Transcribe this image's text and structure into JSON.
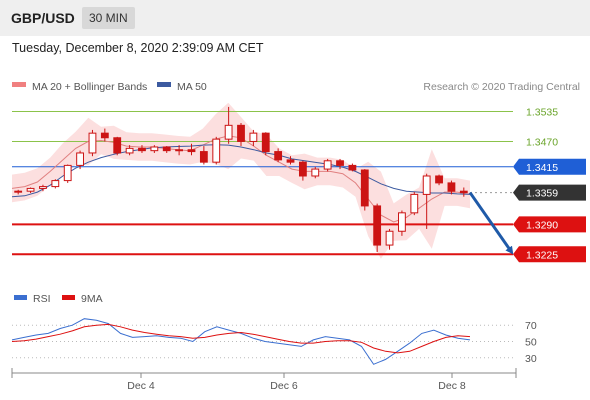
{
  "header": {
    "symbol": "GBP/USD",
    "timeframe": "30 MIN",
    "datetime": "Tuesday, December 8, 2020 2:39:09 AM CET"
  },
  "legend": {
    "ma20": "MA 20 + Bollinger Bands",
    "ma50": "MA 50",
    "credit": "Research © 2020 Trading Central"
  },
  "colors": {
    "candle": "#cc1414",
    "bollinger_fill": "#fbd9d9",
    "ma20": "#e08080",
    "ma50": "#3c5aa0",
    "resistance_green": "#8bc34a",
    "pivot_blue": "#1f5fd6",
    "support_red": "#dd1111",
    "current_price": "#333333",
    "arrow": "#1f5aa8",
    "rsi": "#3b6fd0",
    "rsi_ma": "#dd1111"
  },
  "chart_data": [
    {
      "type": "candlestick",
      "title": "GBP/USD",
      "timeframe": "30 MIN",
      "ylim": [
        1.318,
        1.356
      ],
      "x_labels": [
        "Dec 4",
        "Dec 6",
        "Dec 8"
      ],
      "levels": [
        {
          "label": "1.3535",
          "value": 1.3535,
          "kind": "resistance"
        },
        {
          "label": "1.3470",
          "value": 1.347,
          "kind": "resistance"
        },
        {
          "label": "1.3415",
          "value": 1.3415,
          "kind": "pivot"
        },
        {
          "label": "1.3359",
          "value": 1.3359,
          "kind": "current"
        },
        {
          "label": "1.3290",
          "value": 1.329,
          "kind": "support"
        },
        {
          "label": "1.3225",
          "value": 1.3225,
          "kind": "support"
        }
      ],
      "projection": {
        "from": 1.3359,
        "to": 1.3225
      },
      "series": [
        {
          "name": "MA 20 + Bollinger Bands",
          "values": [
            1.3368,
            1.3372,
            1.3382,
            1.3405,
            1.343,
            1.3455,
            1.347,
            1.3472,
            1.3468,
            1.346,
            1.3458,
            1.3458,
            1.3455,
            1.3452,
            1.345,
            1.3462,
            1.3475,
            1.3482,
            1.3478,
            1.346,
            1.344,
            1.3425,
            1.341,
            1.3405,
            1.3405,
            1.3405,
            1.34,
            1.338,
            1.3345,
            1.331,
            1.3295,
            1.3305,
            1.3325,
            1.3345,
            1.336,
            1.336,
            1.3355
          ]
        },
        {
          "name": "MA 50",
          "values": [
            1.335,
            1.3352,
            1.336,
            1.3375,
            1.3395,
            1.3412,
            1.3425,
            1.3435,
            1.3442,
            1.3448,
            1.3452,
            1.3456,
            1.3458,
            1.3459,
            1.346,
            1.3462,
            1.3463,
            1.3462,
            1.3458,
            1.3452,
            1.3445,
            1.344,
            1.3432,
            1.3428,
            1.3424,
            1.342,
            1.3414,
            1.3405,
            1.3392,
            1.3378,
            1.3368,
            1.3362,
            1.336,
            1.3358,
            1.3358,
            1.3356,
            1.3355
          ]
        }
      ],
      "candles": [
        [
          1.336,
          1.3365,
          1.3355,
          1.3362
        ],
        [
          1.3362,
          1.337,
          1.3358,
          1.3368
        ],
        [
          1.3368,
          1.3376,
          1.3362,
          1.3372
        ],
        [
          1.3372,
          1.3388,
          1.3368,
          1.3385
        ],
        [
          1.3385,
          1.342,
          1.338,
          1.3418
        ],
        [
          1.3418,
          1.345,
          1.341,
          1.3445
        ],
        [
          1.3445,
          1.3495,
          1.3438,
          1.3488
        ],
        [
          1.3488,
          1.3498,
          1.347,
          1.3478
        ],
        [
          1.3478,
          1.348,
          1.344,
          1.3445
        ],
        [
          1.3445,
          1.3462,
          1.344,
          1.3455
        ],
        [
          1.3455,
          1.3462,
          1.3445,
          1.345
        ],
        [
          1.345,
          1.3462,
          1.3445,
          1.3458
        ],
        [
          1.3458,
          1.346,
          1.3445,
          1.345
        ],
        [
          1.345,
          1.3462,
          1.344,
          1.3452
        ],
        [
          1.3452,
          1.3465,
          1.344,
          1.3448
        ],
        [
          1.3448,
          1.346,
          1.342,
          1.3425
        ],
        [
          1.3425,
          1.348,
          1.342,
          1.3475
        ],
        [
          1.3475,
          1.3545,
          1.3465,
          1.3505
        ],
        [
          1.3505,
          1.351,
          1.346,
          1.347
        ],
        [
          1.347,
          1.3495,
          1.346,
          1.3488
        ],
        [
          1.3488,
          1.349,
          1.344,
          1.3448
        ],
        [
          1.3448,
          1.3455,
          1.3425,
          1.343
        ],
        [
          1.343,
          1.3438,
          1.342,
          1.3425
        ],
        [
          1.3425,
          1.3428,
          1.3385,
          1.3395
        ],
        [
          1.3395,
          1.3415,
          1.339,
          1.341
        ],
        [
          1.341,
          1.3432,
          1.3405,
          1.3428
        ],
        [
          1.3428,
          1.3432,
          1.341,
          1.3418
        ],
        [
          1.3418,
          1.3422,
          1.3405,
          1.3408
        ],
        [
          1.3408,
          1.341,
          1.332,
          1.333
        ],
        [
          1.333,
          1.3335,
          1.323,
          1.3245
        ],
        [
          1.3245,
          1.328,
          1.3235,
          1.3275
        ],
        [
          1.3275,
          1.332,
          1.3265,
          1.3315
        ],
        [
          1.3315,
          1.336,
          1.331,
          1.3355
        ],
        [
          1.3355,
          1.34,
          1.328,
          1.3395
        ],
        [
          1.3395,
          1.3398,
          1.3375,
          1.338
        ],
        [
          1.338,
          1.3385,
          1.3355,
          1.3362
        ],
        [
          1.3362,
          1.337,
          1.335,
          1.3359
        ]
      ]
    },
    {
      "type": "line",
      "title": "RSI",
      "ylim": [
        15,
        85
      ],
      "reference_lines": [
        "70",
        "50",
        "30"
      ],
      "x_labels": [
        "Dec 4",
        "Dec 6",
        "Dec 8"
      ],
      "series": [
        {
          "name": "RSI",
          "values": [
            52,
            55,
            58,
            60,
            66,
            70,
            78,
            76,
            72,
            60,
            55,
            56,
            57,
            55,
            54,
            50,
            62,
            68,
            64,
            60,
            54,
            50,
            48,
            46,
            44,
            52,
            56,
            54,
            52,
            44,
            22,
            28,
            38,
            48,
            60,
            64,
            58,
            54,
            52
          ]
        },
        {
          "name": "9MA",
          "values": [
            50,
            51,
            53,
            56,
            59,
            63,
            68,
            70,
            71,
            68,
            64,
            61,
            59,
            57,
            56,
            54,
            55,
            58,
            60,
            61,
            59,
            56,
            53,
            50,
            48,
            48,
            50,
            51,
            51,
            49,
            42,
            38,
            36,
            38,
            44,
            50,
            55,
            57,
            56
          ]
        }
      ]
    }
  ]
}
